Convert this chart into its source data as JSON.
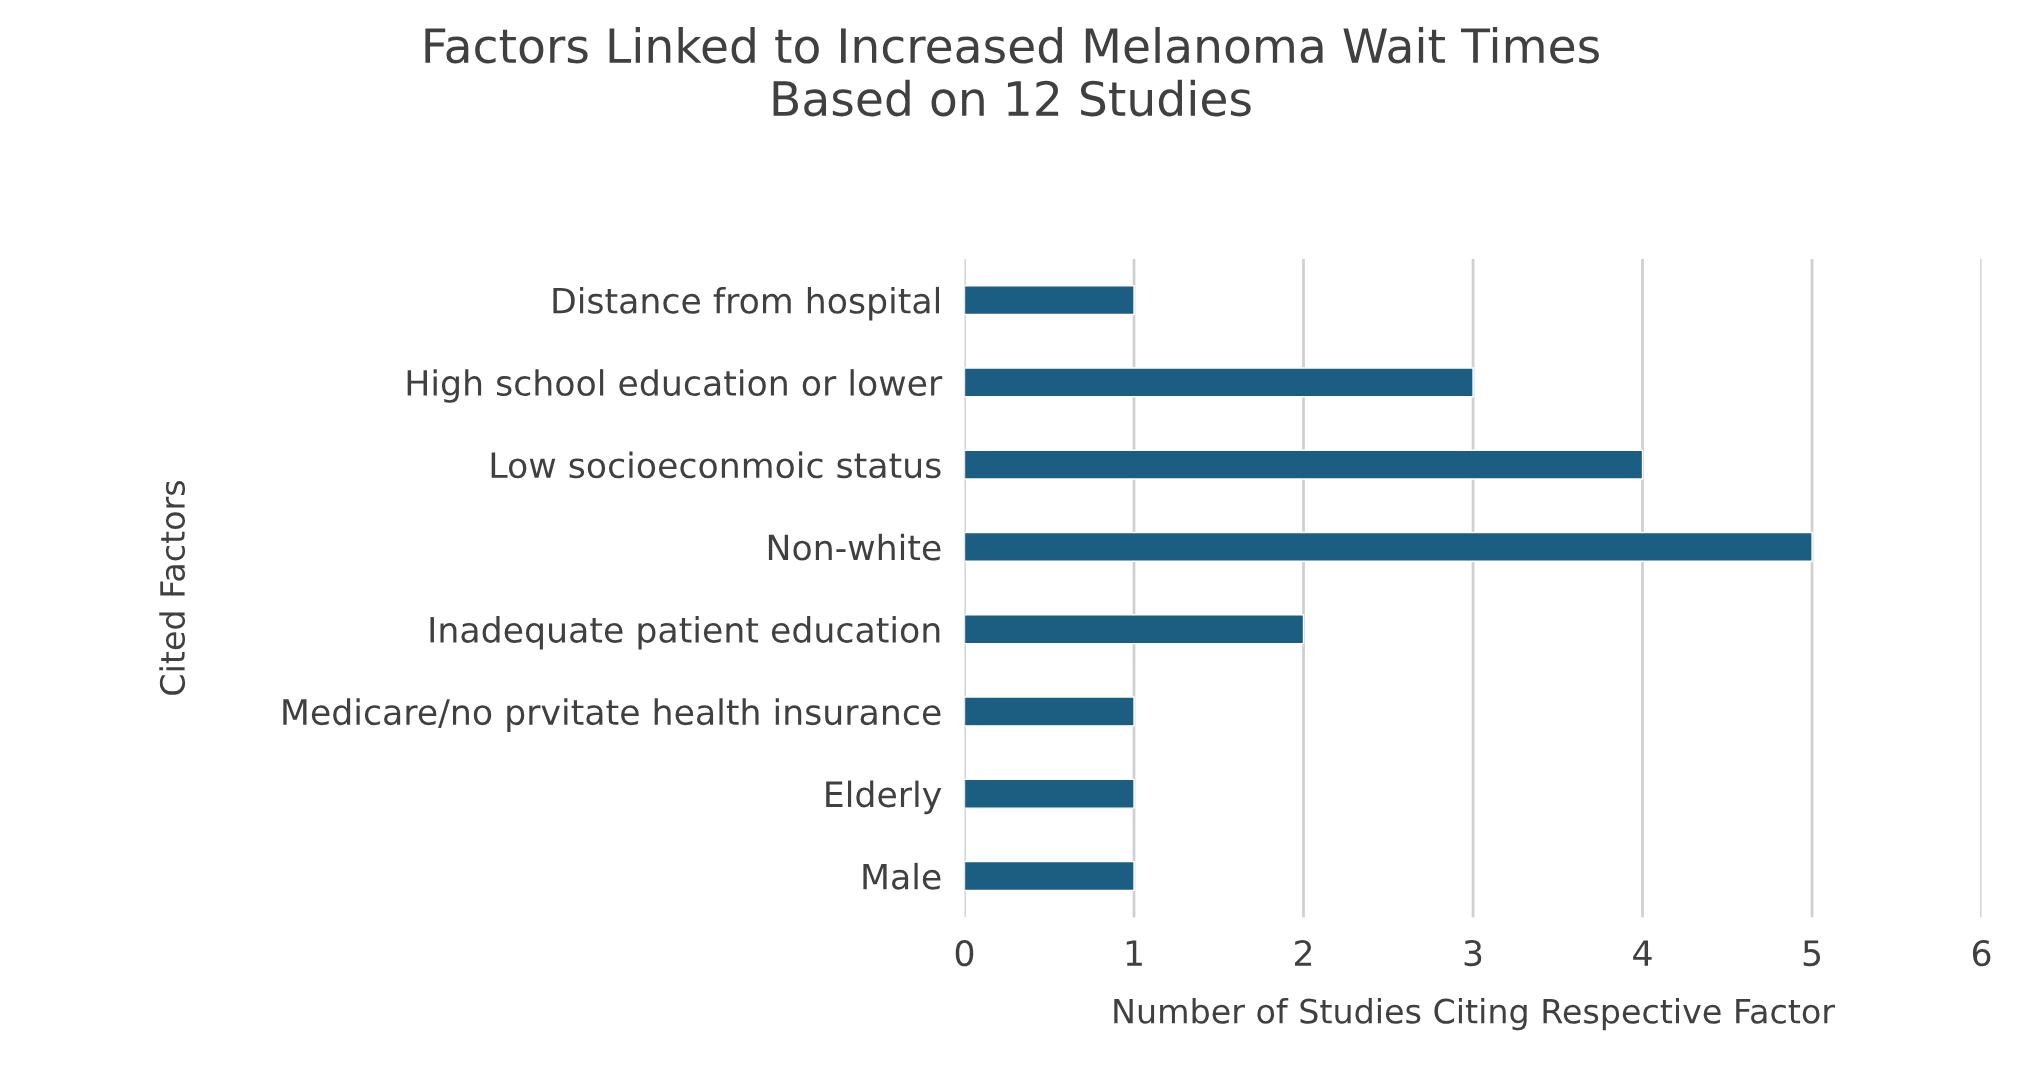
{
  "chart_data": {
    "type": "bar",
    "orientation": "horizontal",
    "title": "Factors Linked to Increased Melanoma Wait Times\nBased on 12 Studies",
    "xlabel": "Number of Studies Citing Respective Factor",
    "ylabel": "Cited Factors",
    "categories": [
      "Distance from hospital",
      "High school education or lower",
      "Low socioeconmoic status",
      "Non-white",
      "Inadequate patient education",
      "Medicare/no prvitate health insurance",
      "Elderly",
      "Male"
    ],
    "values": [
      1,
      3,
      4,
      5,
      2,
      1,
      1,
      1
    ],
    "color": "#1b5e82",
    "xlim": [
      0,
      6
    ],
    "xticks": [
      0,
      1,
      2,
      3,
      4,
      5,
      6
    ],
    "grid": "x"
  }
}
